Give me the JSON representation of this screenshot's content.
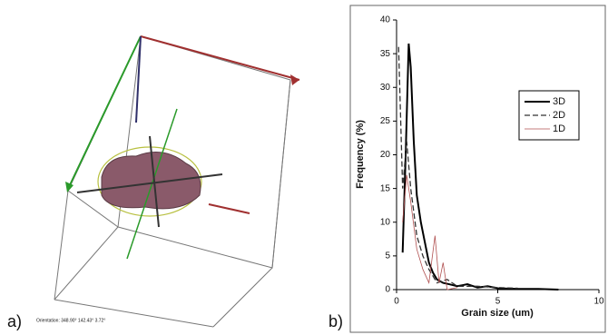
{
  "panel_a": {
    "label": "a)",
    "caption": "Orientation: 348.90° 142.43° 3.72°"
  },
  "chart_data": {
    "type": "line",
    "panel_label": "b)",
    "x_label": "Grain size (um)",
    "y_label": "Frequency (%)",
    "xlim": [
      0,
      10
    ],
    "xticks": [
      0,
      5,
      10
    ],
    "ylim": [
      0,
      40
    ],
    "yticks": [
      0,
      5,
      10,
      15,
      20,
      25,
      30,
      35,
      40
    ],
    "grid": false,
    "legend": "right",
    "series": [
      {
        "name": "3D",
        "color": "#000000",
        "style": "solid",
        "x": [
          0.3,
          0.45,
          0.6,
          0.7,
          0.85,
          1.0,
          1.2,
          1.4,
          1.6,
          1.8,
          2.0,
          2.3,
          2.6,
          3.0,
          3.5,
          4.0,
          4.5,
          5.0,
          6.0,
          7.0,
          8.0
        ],
        "values": [
          5.5,
          20,
          36.5,
          33,
          22,
          14,
          10,
          7,
          4,
          2.5,
          1.5,
          1,
          0.8,
          0.5,
          0.8,
          0.3,
          0.5,
          0.2,
          0.1,
          0.1,
          0
        ]
      },
      {
        "name": "2D",
        "color": "#333333",
        "style": "dashed",
        "x": [
          0.1,
          0.3,
          0.5,
          0.7,
          1.0,
          1.3,
          1.6,
          2.0,
          2.5,
          3.0,
          4.0,
          5.0,
          6.0
        ],
        "values": [
          36,
          15,
          22,
          15,
          8,
          5,
          3,
          1,
          1.5,
          0.5,
          0.5,
          0.3,
          0.2
        ]
      },
      {
        "name": "1D",
        "color": "#b05050",
        "style": "thin",
        "x": [
          0.3,
          0.5,
          0.7,
          1.0,
          1.3,
          1.6,
          1.9,
          2.1,
          2.3,
          2.5,
          3.0
        ],
        "values": [
          10,
          17,
          13,
          6,
          3,
          1,
          8,
          1,
          4,
          0,
          0.3
        ]
      }
    ]
  }
}
